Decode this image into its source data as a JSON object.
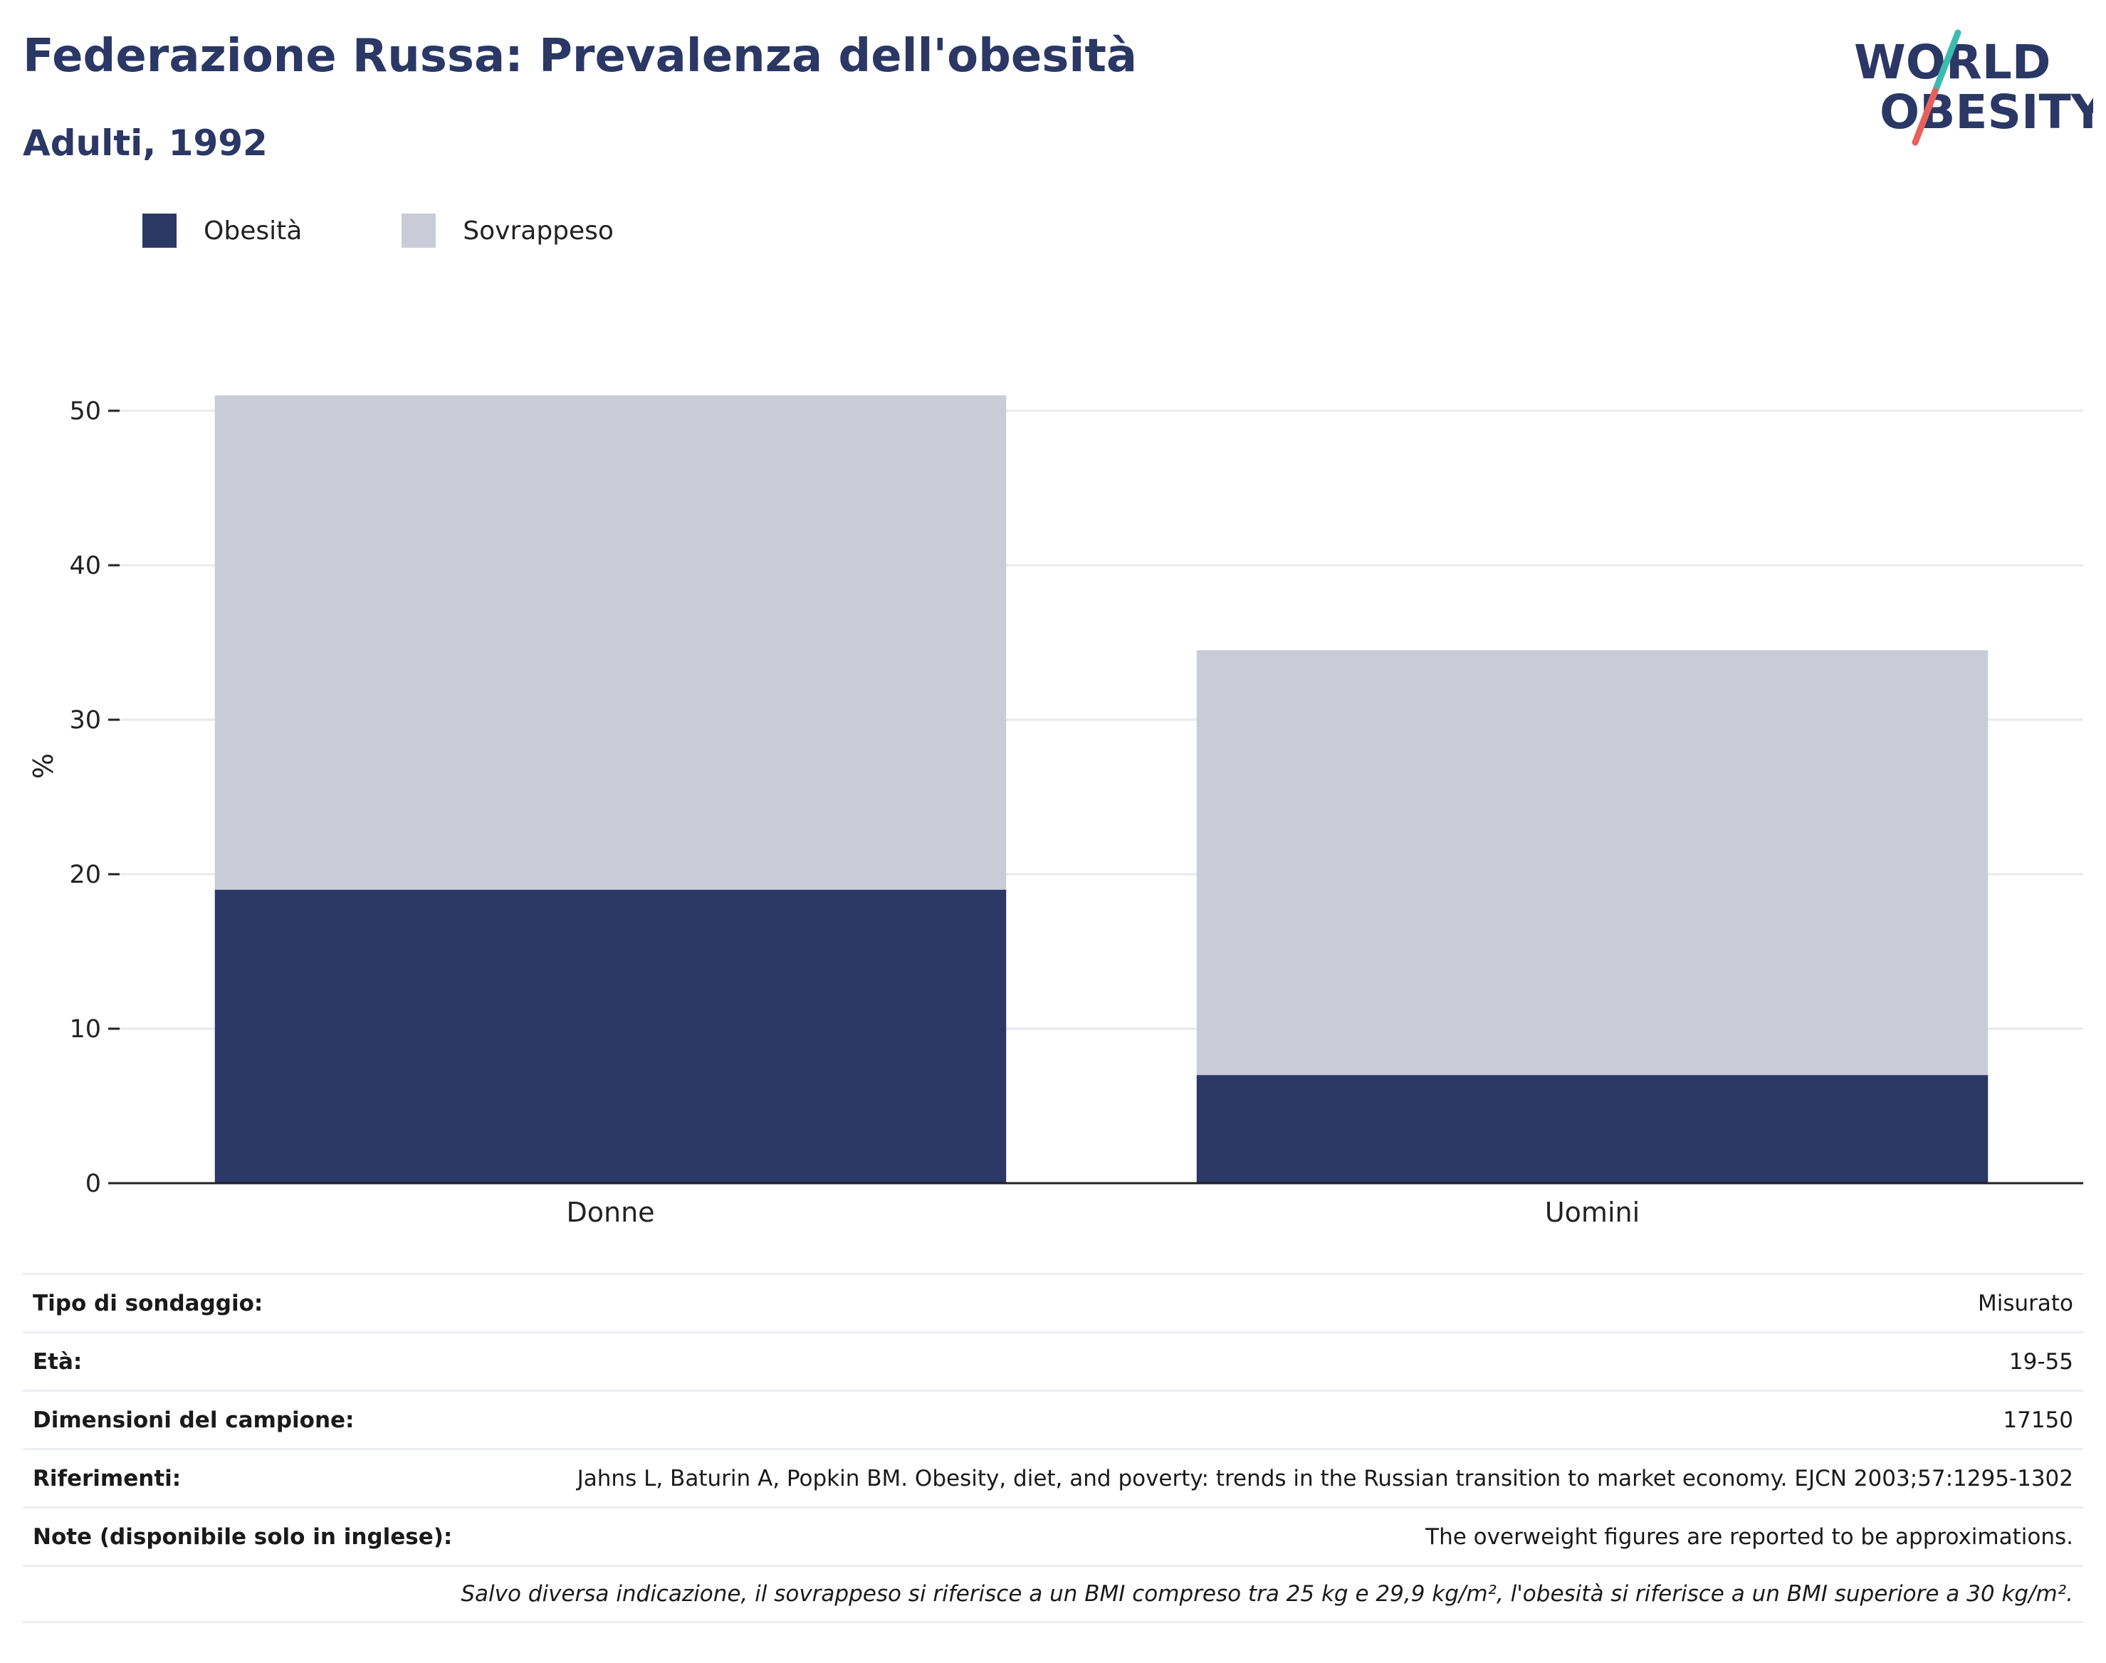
{
  "header": {
    "title": "Federazione Russa: Prevalenza dell'obesità",
    "subtitle": "Adulti, 1992"
  },
  "logo": {
    "line1": "WORLD",
    "line2": "OBESITY",
    "primary_color": "#2b3765",
    "accent_teal": "#3cbab2",
    "accent_red": "#e8605a"
  },
  "legend": [
    {
      "label": "Obesità",
      "color": "#2b3765"
    },
    {
      "label": "Sovrappeso",
      "color": "#c9ccd7"
    }
  ],
  "chart_data": {
    "type": "bar",
    "stacked": true,
    "categories": [
      "Donne",
      "Uomini"
    ],
    "series": [
      {
        "name": "Obesità",
        "values": [
          19.0,
          7.0
        ],
        "color": "#2b3765"
      },
      {
        "name": "Sovrappeso",
        "values": [
          32.0,
          27.5
        ],
        "color": "#c9ccd7"
      }
    ],
    "ylabel": "%",
    "xlabel": "",
    "ylim": [
      0,
      55
    ],
    "yticks": [
      0,
      10,
      20,
      30,
      40,
      50
    ],
    "grid": true,
    "legend_position": "top-left"
  },
  "info_table": [
    {
      "key": "Tipo di sondaggio:",
      "value": "Misurato"
    },
    {
      "key": "Età:",
      "value": "19-55"
    },
    {
      "key": "Dimensioni del campione:",
      "value": "17150"
    },
    {
      "key": "Riferimenti:",
      "value": "Jahns L, Baturin A, Popkin BM. Obesity, diet, and poverty: trends in the Russian transition to market economy. EJCN 2003;57:1295-1302"
    },
    {
      "key": "Note (disponibile solo in inglese):",
      "value": "The overweight figures are reported to be approximations."
    }
  ],
  "footnote": "Salvo diversa indicazione, il sovrappeso si riferisce a un BMI compreso tra 25 kg e 29,9 kg/m², l'obesità si riferisce a un BMI superiore a 30 kg/m²."
}
